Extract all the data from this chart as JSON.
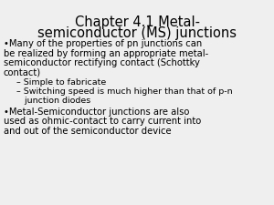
{
  "title_line1": "Chapter 4.1 Metal-",
  "title_line2": "semiconductor (MS) junctions",
  "background_color": "#efefef",
  "text_color": "#000000",
  "title_fontsize": 10.5,
  "body_fontsize": 7.2,
  "sub_fontsize": 6.8,
  "bullet1_lines": [
    "•Many of the properties of pn junctions can",
    "be realized by forming an appropriate metal-",
    "semiconductor rectifying contact (Schottky",
    "contact)"
  ],
  "sub1": "– Simple to fabricate",
  "sub2_lines": [
    "– Switching speed is much higher than that of p-n",
    "   junction diodes"
  ],
  "bullet2_lines": [
    "•Metal-Semiconductor junctions are also",
    "used as ohmic-contact to carry current into",
    "and out of the semiconductor device"
  ]
}
